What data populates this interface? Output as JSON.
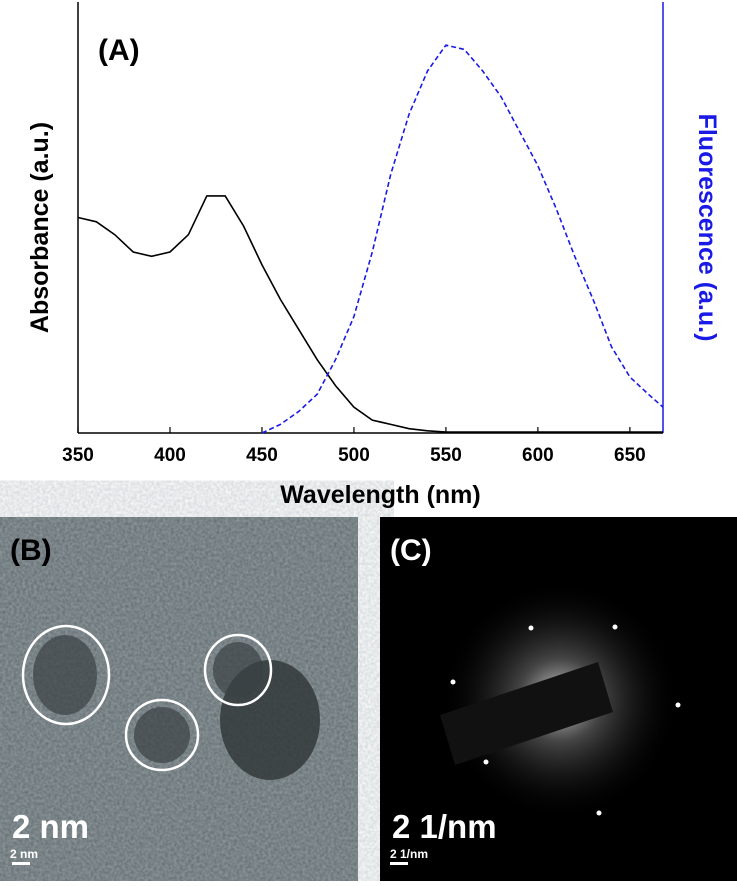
{
  "chart_data": {
    "type": "line",
    "panel_label": "(A)",
    "x_label": "Wavelength (nm)",
    "y_label": "Absorbance (a.u.)",
    "y2_label": "Fluorescence (a.u.)",
    "x": [
      350,
      360,
      370,
      380,
      390,
      400,
      410,
      420,
      430,
      440,
      450,
      460,
      470,
      480,
      490,
      500,
      510,
      520,
      530,
      540,
      550,
      560,
      570,
      580,
      590,
      600,
      610,
      620,
      630,
      640,
      650,
      660,
      668
    ],
    "series": [
      {
        "color": "#000000",
        "dash": false,
        "values": [
          0.5,
          0.49,
          0.46,
          0.42,
          0.41,
          0.42,
          0.46,
          0.55,
          0.55,
          0.48,
          0.39,
          0.31,
          0.24,
          0.17,
          0.11,
          0.06,
          0.03,
          0.02,
          0.01,
          0.005,
          0.002,
          0.002,
          0.002,
          0.002,
          0.002,
          0.002,
          0.002,
          0.002,
          0.002,
          0.002,
          0.002,
          0.002,
          0.002
        ]
      },
      {
        "color": "#1a1ae6",
        "dash": true,
        "axis": "y2",
        "values": [
          null,
          null,
          null,
          null,
          null,
          null,
          null,
          null,
          null,
          null,
          0,
          0.02,
          0.05,
          0.09,
          0.17,
          0.27,
          0.42,
          0.6,
          0.74,
          0.84,
          0.9,
          0.89,
          0.84,
          0.78,
          0.7,
          0.62,
          0.52,
          0.41,
          0.31,
          0.2,
          0.13,
          0.09,
          0.06
        ]
      }
    ],
    "xlim": [
      350,
      668
    ],
    "xticks": [
      350,
      400,
      450,
      500,
      550,
      600,
      650
    ],
    "ylim": [
      0,
      1
    ],
    "y2lim": [
      0,
      1
    ],
    "y2_color": "#1a1ae6"
  },
  "panels": [
    {
      "label": "(B)",
      "scale_text": "2 nm",
      "scale_bar_text": "2 nm"
    },
    {
      "label": "(C)",
      "scale_text": "2 1/nm",
      "scale_bar_text": "2 1/nm"
    }
  ]
}
